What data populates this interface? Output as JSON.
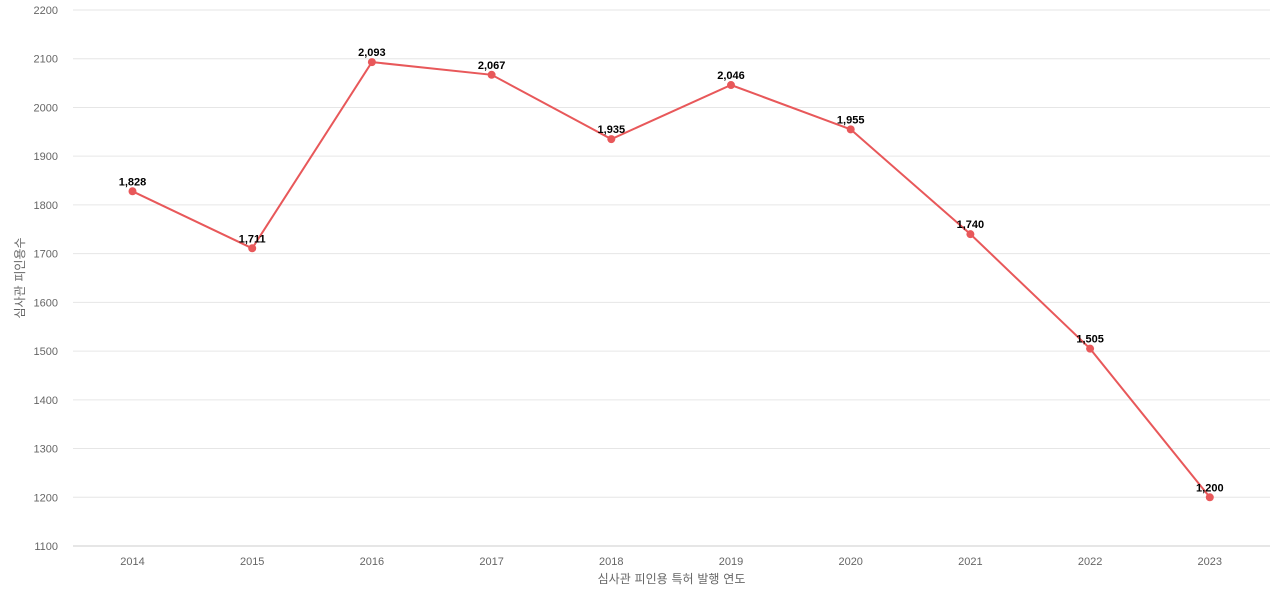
{
  "chart_data": {
    "type": "line",
    "title": "",
    "xlabel": "심사관 피인용 특허 발행 연도",
    "ylabel": "심사관 피인용수",
    "categories": [
      "2014",
      "2015",
      "2016",
      "2017",
      "2018",
      "2019",
      "2020",
      "2021",
      "2022",
      "2023"
    ],
    "values": [
      1828,
      1711,
      2093,
      2067,
      1935,
      2046,
      1955,
      1740,
      1505,
      1200
    ],
    "data_labels": [
      "1,828",
      "1,711",
      "2,093",
      "2,067",
      "1,935",
      "2,046",
      "1,955",
      "1,740",
      "1,505",
      "1,200"
    ],
    "ylim": [
      1100,
      2200
    ],
    "yticks": [
      1100,
      1200,
      1300,
      1400,
      1500,
      1600,
      1700,
      1800,
      1900,
      2000,
      2100,
      2200
    ],
    "grid": true,
    "legend": "none",
    "line_color": "#e8585a"
  }
}
